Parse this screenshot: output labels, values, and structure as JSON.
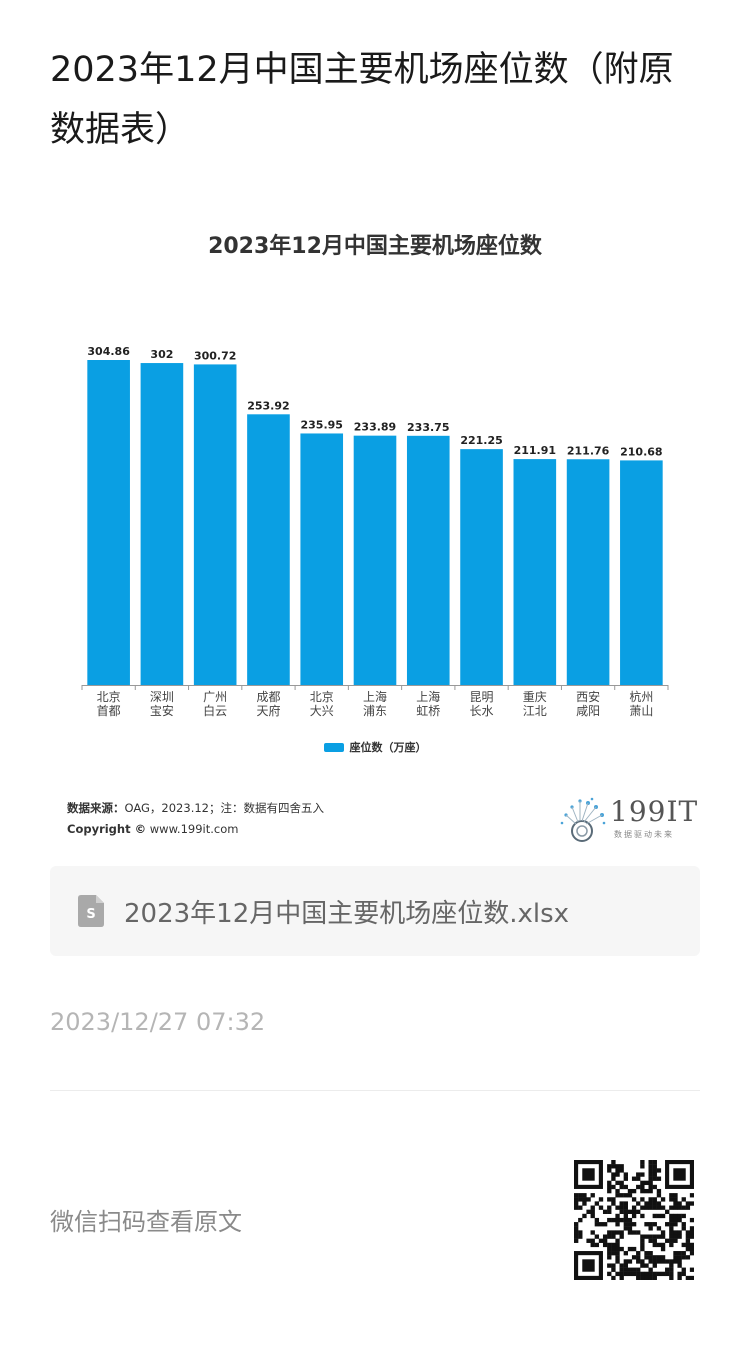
{
  "page": {
    "title": "2023年12月中国主要机场座位数（附原数据表）"
  },
  "chart_data": {
    "type": "bar",
    "title": "2023年12月中国主要机场座位数",
    "categories": [
      [
        "北京",
        "首都"
      ],
      [
        "深圳",
        "宝安"
      ],
      [
        "广州",
        "白云"
      ],
      [
        "成都",
        "天府"
      ],
      [
        "北京",
        "大兴"
      ],
      [
        "上海",
        "浦东"
      ],
      [
        "上海",
        "虹桥"
      ],
      [
        "昆明",
        "长水"
      ],
      [
        "重庆",
        "江北"
      ],
      [
        "西安",
        "咸阳"
      ],
      [
        "杭州",
        "萧山"
      ]
    ],
    "series": [
      {
        "name": "座位数（万座）",
        "values": [
          304.86,
          302,
          300.72,
          253.92,
          235.95,
          233.89,
          233.75,
          221.25,
          211.91,
          211.76,
          210.68
        ],
        "labels": [
          "304.86",
          "302",
          "300.72",
          "253.92",
          "235.95",
          "233.89",
          "233.75",
          "221.25",
          "211.91",
          "211.76",
          "210.68"
        ]
      }
    ],
    "ylim": [
      0,
      304.86
    ],
    "grid": false,
    "legend_position": "bottom",
    "bar_color": "#0a9fe3"
  },
  "footer": {
    "source_label": "数据来源：",
    "source_text": "OAG，2023.12；注：数据有四舍五入",
    "copyright_label": "Copyright ©",
    "copyright_text": " www.199it.com",
    "logo_text": "199IT",
    "logo_sub": "数据驱动未来"
  },
  "attachment": {
    "icon": "spreadsheet-file-icon",
    "file_name": "2023年12月中国主要机场座位数.xlsx"
  },
  "meta": {
    "timestamp": "2023/12/27 07:32"
  },
  "qr": {
    "caption": "微信扫码查看原文",
    "icon": "qr-code"
  }
}
